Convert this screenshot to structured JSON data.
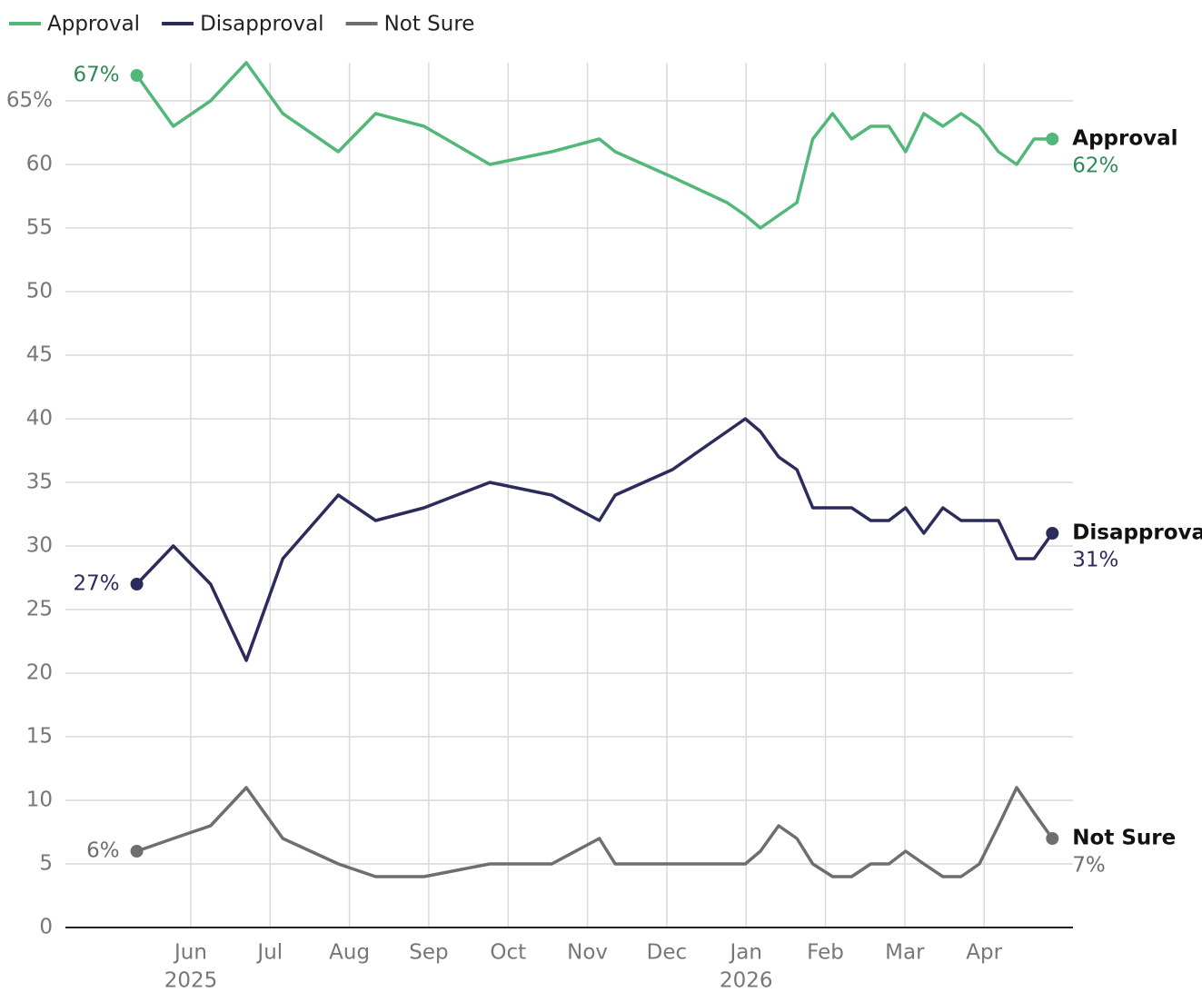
{
  "chart_data": {
    "type": "line",
    "x": [
      4.32,
      4.78,
      5.25,
      5.7,
      6.16,
      6.86,
      7.33,
      7.94,
      8.77,
      9.55,
      10.15,
      10.35,
      11.07,
      11.76,
      11.99,
      12.18,
      12.41,
      12.64,
      12.84,
      13.09,
      13.33,
      13.57,
      13.8,
      14.01,
      14.24,
      14.48,
      14.71,
      14.94,
      15.18,
      15.41,
      15.63,
      15.86
    ],
    "series": [
      {
        "name": "Approval",
        "color": "#52b87a",
        "label_color": "#2e8b57",
        "values": [
          67,
          63,
          65,
          68,
          64,
          61,
          64,
          63,
          60,
          61,
          62,
          61,
          59,
          57,
          56,
          55,
          56,
          57,
          62,
          64,
          62,
          63,
          63,
          61,
          64,
          63,
          64,
          63,
          61,
          60,
          62,
          62
        ],
        "value_labels": [
          "67%",
          null,
          null,
          null,
          null,
          null,
          null,
          null,
          null,
          null,
          null,
          null,
          null,
          null,
          null,
          null,
          null,
          null,
          null,
          null,
          null,
          null,
          null,
          null,
          null,
          null,
          null,
          null,
          null,
          null,
          null,
          "62%"
        ]
      },
      {
        "name": "Disapproval",
        "color": "#2b2b5c",
        "label_color": "#2b2b5c",
        "values": [
          27,
          30,
          27,
          21,
          29,
          34,
          32,
          33,
          35,
          34,
          32,
          34,
          36,
          39,
          40,
          39,
          37,
          36,
          33,
          33,
          33,
          32,
          32,
          33,
          31,
          33,
          32,
          32,
          32,
          29,
          29,
          31
        ],
        "value_labels": [
          "27%",
          null,
          null,
          null,
          null,
          null,
          null,
          null,
          null,
          null,
          null,
          null,
          null,
          null,
          null,
          null,
          null,
          null,
          null,
          null,
          null,
          null,
          null,
          null,
          null,
          null,
          null,
          null,
          null,
          null,
          null,
          "31%"
        ]
      },
      {
        "name": "Not Sure",
        "color": "#6e6e6e",
        "label_color": "#6e6e6e",
        "values": [
          6,
          7,
          8,
          11,
          7,
          5,
          4,
          4,
          5,
          5,
          7,
          5,
          5,
          5,
          5,
          6,
          8,
          7,
          5,
          4,
          4,
          5,
          5,
          6,
          5,
          4,
          4,
          5,
          8,
          11,
          9,
          7
        ],
        "value_labels": [
          "6%",
          null,
          null,
          null,
          null,
          null,
          null,
          null,
          null,
          null,
          null,
          null,
          null,
          null,
          null,
          null,
          null,
          null,
          null,
          null,
          null,
          null,
          null,
          null,
          null,
          null,
          null,
          null,
          null,
          null,
          null,
          "7%"
        ]
      }
    ],
    "xlim": [
      3.42,
      16.12
    ],
    "xticks": [
      {
        "value": 5,
        "label": "Jun"
      },
      {
        "value": 6,
        "label": "Jul"
      },
      {
        "value": 7,
        "label": "Aug"
      },
      {
        "value": 8,
        "label": "Sep"
      },
      {
        "value": 9,
        "label": "Oct"
      },
      {
        "value": 10,
        "label": "Nov"
      },
      {
        "value": 11,
        "label": "Dec"
      },
      {
        "value": 12,
        "label": "Jan"
      },
      {
        "value": 13,
        "label": "Feb"
      },
      {
        "value": 14,
        "label": "Mar"
      },
      {
        "value": 15,
        "label": "Apr"
      }
    ],
    "x_year_ticks": [
      {
        "value": 5,
        "label": "2025"
      },
      {
        "value": 12,
        "label": "2026"
      }
    ],
    "ylim": [
      0,
      68
    ],
    "yticks": [
      0,
      5,
      10,
      15,
      20,
      25,
      30,
      35,
      40,
      45,
      50,
      55,
      60,
      {
        "value": 65,
        "label": "65%"
      }
    ],
    "grid": true,
    "legend": "top-left"
  }
}
